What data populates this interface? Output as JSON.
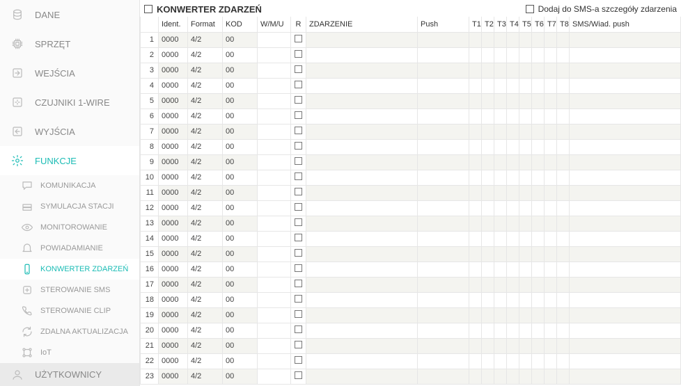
{
  "sidebar": {
    "main": [
      {
        "id": "dane",
        "label": "DANE",
        "icon": "db",
        "active": false
      },
      {
        "id": "sprzet",
        "label": "SPRZĘT",
        "icon": "chip",
        "active": false
      },
      {
        "id": "wejscia",
        "label": "WEJŚCIA",
        "icon": "in",
        "active": false
      },
      {
        "id": "czuj",
        "label": "CZUJNIKI 1-WIRE",
        "icon": "sensor",
        "active": false
      },
      {
        "id": "wyjscia",
        "label": "WYJŚCIA",
        "icon": "out",
        "active": false
      },
      {
        "id": "funkcje",
        "label": "FUNKCJE",
        "icon": "gear",
        "active": true
      }
    ],
    "sub": [
      {
        "id": "kom",
        "label": "KOMUNIKACJA",
        "icon": "chat",
        "active": false
      },
      {
        "id": "sym",
        "label": "SYMULACJA STACJI",
        "icon": "stack",
        "active": false
      },
      {
        "id": "mon",
        "label": "MONITOROWANIE",
        "icon": "eye",
        "active": false
      },
      {
        "id": "pow",
        "label": "POWIADAMIANIE",
        "icon": "bell",
        "active": false
      },
      {
        "id": "konw",
        "label": "KONWERTER ZDARZEŃ",
        "icon": "phone",
        "active": true
      },
      {
        "id": "sms",
        "label": "STEROWANIE SMS",
        "icon": "plus",
        "active": false
      },
      {
        "id": "clip",
        "label": "STEROWANIE CLIP",
        "icon": "call",
        "active": false
      },
      {
        "id": "akt",
        "label": "ZDALNA AKTUALIZACJA",
        "icon": "update",
        "active": false
      },
      {
        "id": "iot",
        "label": "IoT",
        "icon": "iot",
        "active": false
      }
    ],
    "footer": {
      "label": "UŻYTKOWNICY",
      "icon": "user"
    }
  },
  "topbar": {
    "title": "KONWERTER ZDARZEŃ",
    "sms_label": "Dodaj do SMS-a szczegóły zdarzenia"
  },
  "table": {
    "headers": {
      "ident": "Ident.",
      "format": "Format",
      "kod": "KOD",
      "wmu": "W/M/U",
      "r": "R",
      "zdarzenie": "ZDARZENIE",
      "push": "Push",
      "t": [
        "T1",
        "T2",
        "T3",
        "T4",
        "T5",
        "T6",
        "T7",
        "T8"
      ],
      "sms": "SMS/Wiad. push"
    },
    "row_defaults": {
      "ident": "0000",
      "format": "4/2",
      "kod": "00"
    },
    "row_count": 23
  },
  "colors": {
    "accent": "#1bbcb5",
    "sidebar_bg": "#fafafa",
    "border": "#e6e6e6",
    "row_shade": "#f4f4f0"
  }
}
